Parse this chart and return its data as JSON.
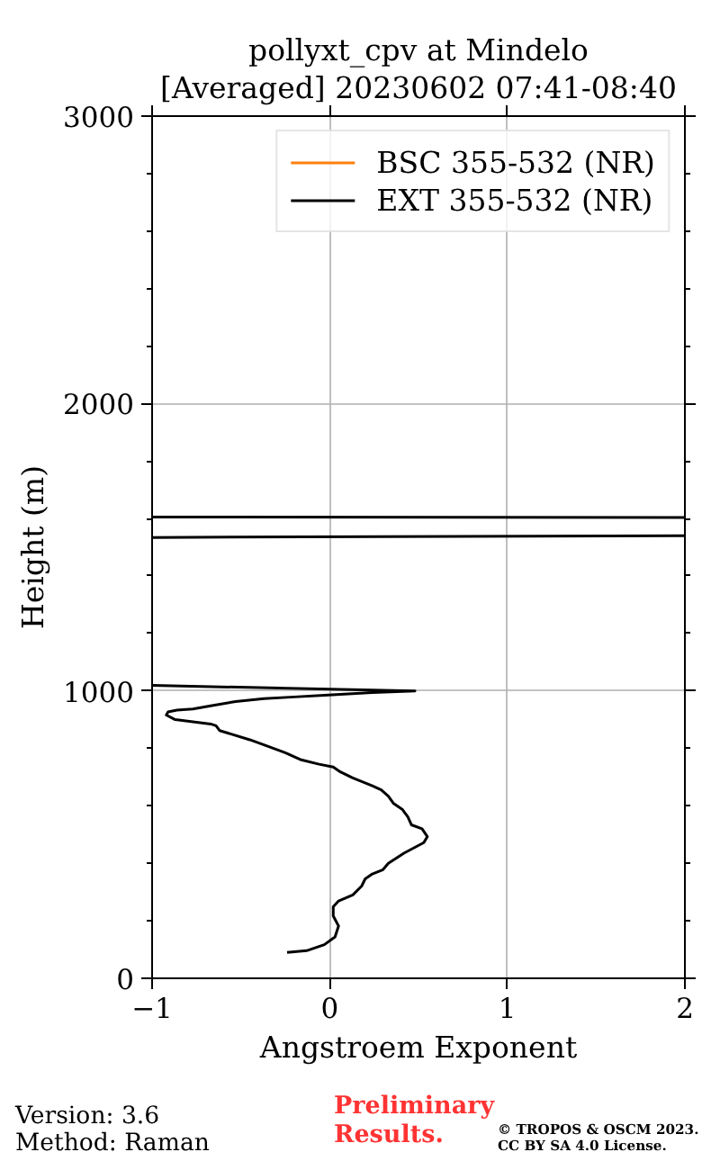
{
  "chart_data": {
    "type": "line",
    "title": "pollyxt_cpv at Mindelo",
    "subtitle": "[Averaged] 20230602 07:41-08:40",
    "xlabel": "Angstroem Exponent",
    "ylabel": "Height (m)",
    "xlim": [
      -1,
      2
    ],
    "ylim": [
      0,
      3000
    ],
    "xticks": [
      {
        "value": -1,
        "label": "−1"
      },
      0,
      1,
      2
    ],
    "yticks": [
      0,
      {
        "value": 200,
        "label": null
      },
      {
        "value": 400,
        "label": null
      },
      {
        "value": 600,
        "label": null
      },
      {
        "value": 800,
        "label": null
      },
      1000,
      {
        "value": 1200,
        "label": null
      },
      {
        "value": 1400,
        "label": null
      },
      {
        "value": 1600,
        "label": null
      },
      {
        "value": 1800,
        "label": null
      },
      2000,
      {
        "value": 2200,
        "label": null
      },
      {
        "value": 2400,
        "label": null
      },
      {
        "value": 2600,
        "label": null
      },
      {
        "value": 2800,
        "label": null
      },
      3000
    ],
    "grid": true,
    "legend": "top right",
    "series": [
      {
        "name": "BSC 355-532 (NR)",
        "color": "#ff7f0e"
      },
      {
        "name": "EXT 355-532 (NR)",
        "color": "#000000",
        "x": [
          -0.24,
          -0.13,
          -0.03,
          0.03,
          0.05,
          0.02,
          0.02,
          0.05,
          0.13,
          0.18,
          0.2,
          0.24,
          0.3,
          0.33,
          0.42,
          0.53,
          0.55,
          0.52,
          0.46,
          0.44,
          0.41,
          0.36,
          0.33,
          0.29,
          0.24,
          0.13,
          0.06,
          0.02,
          -0.06,
          -0.16,
          -0.25,
          -0.37,
          -0.45,
          -0.62,
          -0.64,
          -0.67,
          -0.87,
          -0.92,
          -0.91,
          -0.86,
          -0.77,
          -0.67,
          -0.53,
          -0.37,
          -0.2,
          -0.03,
          0.24,
          0.48,
          -1
        ],
        "values": [
          90,
          96,
          117,
          144,
          182,
          217,
          249,
          269,
          290,
          321,
          346,
          363,
          378,
          400,
          436,
          472,
          493,
          520,
          534,
          562,
          587,
          608,
          634,
          656,
          670,
          697,
          718,
          735,
          745,
          760,
          785,
          812,
          830,
          862,
          879,
          885,
          900,
          916,
          927,
          933,
          937,
          948,
          963,
          973,
          979,
          985,
          994,
          1000,
          1019
        ]
      },
      {
        "color": "#000000",
        "x": [
          -1,
          2
        ],
        "values": [
          1534,
          1540
        ]
      },
      {
        "color": "#000000",
        "x": [
          -1,
          2
        ],
        "values": [
          1605,
          1603
        ]
      }
    ],
    "annotations": [
      "Version: 3.6",
      "Method: Raman",
      "Preliminary",
      "Results.",
      "© TROPOS & OSCM 2023.",
      "CC BY SA 4.0 License."
    ]
  }
}
